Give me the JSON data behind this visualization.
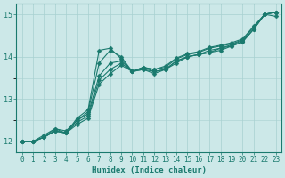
{
  "xlabel": "Humidex (Indice chaleur)",
  "xlim": [
    -0.5,
    23.5
  ],
  "ylim": [
    11.75,
    15.25
  ],
  "yticks": [
    12,
    13,
    14,
    15
  ],
  "xticks": [
    0,
    1,
    2,
    3,
    4,
    5,
    6,
    7,
    8,
    9,
    10,
    11,
    12,
    13,
    14,
    15,
    16,
    17,
    18,
    19,
    20,
    21,
    22,
    23
  ],
  "bg_color": "#cce8e8",
  "line_color": "#1a7a6e",
  "grid_color": "#a8d0d0",
  "lines": [
    {
      "x": [
        0,
        1,
        2,
        3,
        4,
        5,
        6,
        7,
        8,
        9,
        10,
        11,
        12,
        13,
        14,
        15,
        16,
        17,
        18,
        19,
        20,
        21,
        22,
        23
      ],
      "y": [
        12.0,
        12.0,
        12.1,
        12.25,
        12.2,
        12.55,
        12.75,
        14.15,
        14.2,
        13.95,
        13.65,
        13.7,
        13.6,
        13.7,
        13.85,
        14.0,
        14.05,
        14.1,
        14.15,
        14.25,
        14.35,
        14.65,
        15.0,
        14.95
      ]
    },
    {
      "x": [
        0,
        1,
        2,
        3,
        4,
        5,
        6,
        7,
        8,
        9,
        10,
        11,
        12,
        13,
        14,
        15,
        16,
        17,
        18,
        19,
        20,
        21,
        22,
        23
      ],
      "y": [
        12.0,
        12.0,
        12.1,
        12.25,
        12.2,
        12.5,
        12.7,
        13.85,
        14.15,
        14.0,
        13.65,
        13.7,
        13.65,
        13.7,
        13.9,
        14.0,
        14.05,
        14.1,
        14.2,
        14.25,
        14.35,
        14.65,
        15.0,
        15.05
      ]
    },
    {
      "x": [
        0,
        1,
        2,
        3,
        4,
        5,
        6,
        7,
        8,
        9,
        10,
        11,
        12,
        13,
        14,
        15,
        16,
        17,
        18,
        19,
        20,
        21,
        22,
        23
      ],
      "y": [
        12.0,
        12.0,
        12.15,
        12.3,
        12.25,
        12.5,
        12.65,
        13.55,
        13.85,
        13.9,
        13.65,
        13.75,
        13.65,
        13.7,
        13.9,
        14.0,
        14.05,
        14.15,
        14.2,
        14.28,
        14.38,
        14.65,
        15.0,
        15.05
      ]
    },
    {
      "x": [
        0,
        1,
        2,
        3,
        4,
        5,
        6,
        7,
        8,
        9,
        10,
        11,
        12,
        13,
        14,
        15,
        16,
        17,
        18,
        19,
        20,
        21,
        22,
        23
      ],
      "y": [
        12.0,
        12.0,
        12.1,
        12.3,
        12.2,
        12.45,
        12.6,
        13.45,
        13.7,
        13.85,
        13.65,
        13.75,
        13.7,
        13.75,
        13.95,
        14.05,
        14.1,
        14.2,
        14.25,
        14.3,
        14.4,
        14.7,
        15.0,
        15.05
      ]
    },
    {
      "x": [
        0,
        1,
        2,
        3,
        4,
        5,
        6,
        7,
        8,
        9,
        10,
        11,
        12,
        13,
        14,
        15,
        16,
        17,
        18,
        19,
        20,
        21,
        22,
        23
      ],
      "y": [
        12.0,
        12.0,
        12.1,
        12.25,
        12.2,
        12.4,
        12.55,
        13.35,
        13.6,
        13.8,
        13.65,
        13.75,
        13.7,
        13.78,
        13.97,
        14.07,
        14.12,
        14.22,
        14.27,
        14.33,
        14.42,
        14.72,
        15.0,
        15.05
      ]
    }
  ],
  "marker": "D",
  "markersize": 2.5,
  "linewidth": 0.8
}
